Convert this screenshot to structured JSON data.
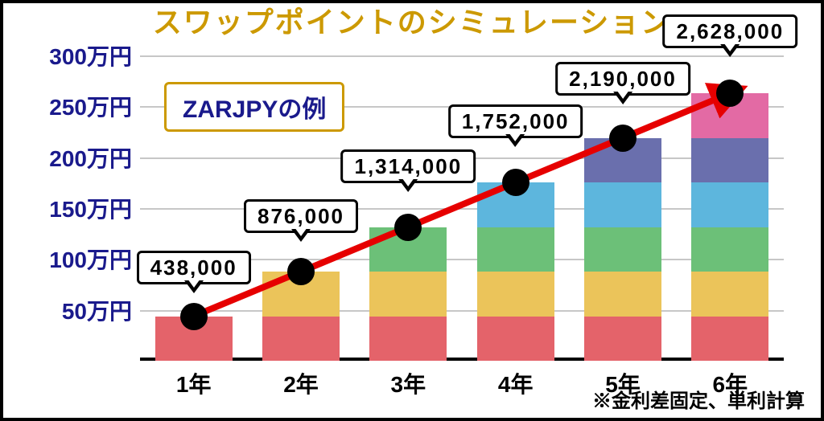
{
  "title": "スワップポイントのシミュレーション",
  "subtitle": "ZARJPYの例",
  "footnote": "※金利差固定、単利計算",
  "chart": {
    "type": "stacked-bar-with-trend",
    "y": {
      "min": 0,
      "max": 300,
      "ticks": [
        50,
        100,
        150,
        200,
        250,
        300
      ],
      "suffix": "万円",
      "label_fontsize": 28
    },
    "x": {
      "categories": [
        "1年",
        "2年",
        "3年",
        "4年",
        "5年",
        "6年"
      ],
      "label_fontsize": 28
    },
    "segment_value": 43.8,
    "segment_colors": [
      "#e4636a",
      "#ebc45a",
      "#6cc078",
      "#5db6dd",
      "#6a6fad",
      "#e36aa4"
    ],
    "bar_widths": 96,
    "callout_labels": [
      "438,000",
      "876,000",
      "1,314,000",
      "1,752,000",
      "2,190,000",
      "2,628,000"
    ],
    "callout_y_offsets": [
      40,
      48,
      55,
      55,
      53,
      56
    ],
    "trend_color": "#e60000",
    "trend_width": 8,
    "grid_color": "#c7c7c7",
    "title_fill": "#cc9900",
    "title_stroke": "#1a1a8c",
    "ylabel_color": "#1a1a8c"
  }
}
